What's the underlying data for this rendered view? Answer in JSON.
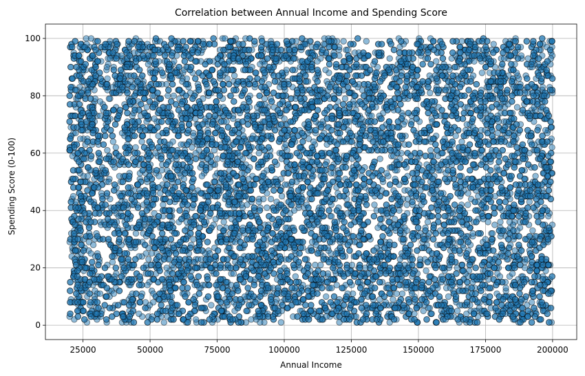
{
  "chart_data": {
    "type": "scatter",
    "title": "Correlation between Annual Income and Spending Score",
    "xlabel": "Annual Income",
    "ylabel": "Spending Score (0-100)",
    "xlim": [
      11000,
      209000
    ],
    "ylim": [
      -5,
      105
    ],
    "xticks": [
      25000,
      50000,
      75000,
      100000,
      125000,
      150000,
      175000,
      200000
    ],
    "yticks": [
      0,
      20,
      40,
      60,
      80,
      100
    ],
    "grid": true,
    "legend": "none",
    "marker_color": "#1f77b4",
    "marker_edge_color": "#000000",
    "marker_alpha": 0.5,
    "series": [
      {
        "points_description": "dense uniform cloud",
        "x_range": [
          20000,
          200000
        ],
        "y_range": [
          1,
          100
        ],
        "y_integer": true,
        "approx_count": 10000
      }
    ]
  }
}
